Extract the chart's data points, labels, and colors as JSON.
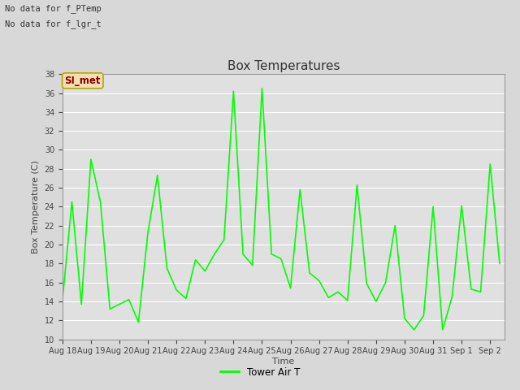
{
  "title": "Box Temperatures",
  "ylabel": "Box Temperature (C)",
  "xlabel": "Time",
  "ylim": [
    10,
    38
  ],
  "line_color": "#00FF00",
  "line_width": 1.2,
  "background_color": "#D8D8D8",
  "plot_bg_color": "#E0E0E0",
  "grid_color": "#FFFFFF",
  "annotation_text1": "No data for f_PTemp",
  "annotation_text2": "No data for f_lgr_t",
  "legend_label": "Tower Air T",
  "box_label": "SI_met",
  "x_tick_labels": [
    "Aug 18",
    "Aug 19",
    "Aug 20",
    "Aug 21",
    "Aug 22",
    "Aug 23",
    "Aug 24",
    "Aug 25",
    "Aug 26",
    "Aug 27",
    "Aug 28",
    "Aug 29",
    "Aug 30",
    "Aug 31",
    "Sep 1",
    "Sep 2"
  ],
  "y_values": [
    14.1,
    24.5,
    13.7,
    29.0,
    24.5,
    13.2,
    13.7,
    14.2,
    11.8,
    21.3,
    27.3,
    17.5,
    15.2,
    14.3,
    18.4,
    17.2,
    19.0,
    20.5,
    36.2,
    19.0,
    17.8,
    36.5,
    19.0,
    18.5,
    15.4,
    25.8,
    17.0,
    16.2,
    14.4,
    15.0,
    14.1,
    26.3,
    15.9,
    14.0,
    16.0,
    22.0,
    12.2,
    11.0,
    12.5,
    24.0,
    11.0,
    14.5,
    24.1,
    15.3,
    15.0,
    28.5,
    18.0
  ],
  "x_dense": [
    0.0,
    0.333,
    0.667,
    1.0,
    1.333,
    1.667,
    2.0,
    2.333,
    2.667,
    3.0,
    3.333,
    3.667,
    4.0,
    4.333,
    4.667,
    5.0,
    5.333,
    5.667,
    6.0,
    6.333,
    6.667,
    7.0,
    7.333,
    7.667,
    8.0,
    8.333,
    8.667,
    9.0,
    9.333,
    9.667,
    10.0,
    10.333,
    10.667,
    11.0,
    11.333,
    11.667,
    12.0,
    12.333,
    12.667,
    13.0,
    13.333,
    13.667,
    14.0,
    14.333,
    14.667,
    15.0,
    15.333
  ],
  "title_fontsize": 11,
  "axis_label_fontsize": 8,
  "tick_fontsize": 7,
  "annot_fontsize": 7.5
}
